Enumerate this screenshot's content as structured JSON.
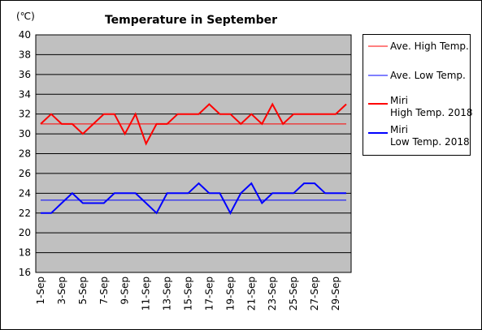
{
  "chart_data": {
    "type": "line",
    "title": "Temperature in September",
    "unit_label": "(℃)",
    "xlabel": "",
    "ylabel": "",
    "ylim": [
      16,
      40
    ],
    "ytick_step": 2,
    "grid": true,
    "legend_position": "right",
    "categories": [
      "1-Sep",
      "2-Sep",
      "3-Sep",
      "4-Sep",
      "5-Sep",
      "6-Sep",
      "7-Sep",
      "8-Sep",
      "9-Sep",
      "10-Sep",
      "11-Sep",
      "12-Sep",
      "13-Sep",
      "14-Sep",
      "15-Sep",
      "16-Sep",
      "17-Sep",
      "18-Sep",
      "19-Sep",
      "20-Sep",
      "21-Sep",
      "22-Sep",
      "23-Sep",
      "24-Sep",
      "25-Sep",
      "26-Sep",
      "27-Sep",
      "28-Sep",
      "29-Sep",
      "30-Sep"
    ],
    "tick_labels": [
      "1-Sep",
      "3-Sep",
      "5-Sep",
      "7-Sep",
      "9-Sep",
      "11-Sep",
      "13-Sep",
      "15-Sep",
      "17-Sep",
      "19-Sep",
      "21-Sep",
      "23-Sep",
      "25-Sep",
      "27-Sep",
      "29-Sep"
    ],
    "series": [
      {
        "name": "Ave. High Temp.",
        "color": "#ff0000",
        "width": 1,
        "values": [
          31,
          31,
          31,
          31,
          31,
          31,
          31,
          31,
          31,
          31,
          31,
          31,
          31,
          31,
          31,
          31,
          31,
          31,
          31,
          31,
          31,
          31,
          31,
          31,
          31,
          31,
          31,
          31,
          31,
          31
        ]
      },
      {
        "name": "Ave. Low Temp.",
        "color": "#0000ff",
        "width": 1,
        "values": [
          23.3,
          23.3,
          23.3,
          23.3,
          23.3,
          23.3,
          23.3,
          23.3,
          23.3,
          23.3,
          23.3,
          23.3,
          23.3,
          23.3,
          23.3,
          23.3,
          23.3,
          23.3,
          23.3,
          23.3,
          23.3,
          23.3,
          23.3,
          23.3,
          23.3,
          23.3,
          23.3,
          23.3,
          23.3,
          23.3
        ]
      },
      {
        "name": "Miri\nHigh Temp. 2018",
        "color": "#ff0000",
        "width": 2,
        "values": [
          31,
          32,
          31,
          31,
          30,
          31,
          32,
          32,
          30,
          32,
          29,
          31,
          31,
          32,
          32,
          32,
          33,
          32,
          32,
          31,
          32,
          31,
          33,
          31,
          32,
          32,
          32,
          32,
          32,
          33
        ]
      },
      {
        "name": "Miri\nLow Temp. 2018",
        "color": "#0000ff",
        "width": 2,
        "values": [
          22,
          22,
          23,
          24,
          23,
          23,
          23,
          24,
          24,
          24,
          23,
          22,
          24,
          24,
          24,
          25,
          24,
          24,
          22,
          24,
          25,
          23,
          24,
          24,
          24,
          25,
          25,
          24,
          24,
          24
        ]
      }
    ],
    "colors": {
      "plot_background": "#c0c0c0",
      "grid": "#000000"
    }
  }
}
